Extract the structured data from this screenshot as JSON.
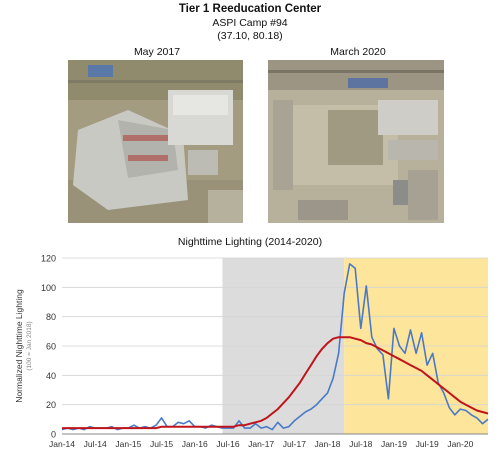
{
  "header": {
    "title": "Tier 1 Reeducation Center",
    "camp": "ASPI Camp #94",
    "coords": "(37.10, 80.18)"
  },
  "images": [
    {
      "label": "May 2017"
    },
    {
      "label": "March 2020"
    }
  ],
  "chart_data": {
    "type": "line",
    "title": "Nighttime Lighting (2014-2020)",
    "ylabel": "Normalized Nighttime Lighting",
    "ylabel_note": "(100 = Jan 2018)",
    "ylim": [
      0,
      120
    ],
    "yticks": [
      0,
      20,
      40,
      60,
      80,
      100,
      120
    ],
    "xticks": [
      "Jan-14",
      "Jul-14",
      "Jan-15",
      "Jul-15",
      "Jan-16",
      "Jul-16",
      "Jan-17",
      "Jul-17",
      "Jan-18",
      "Jul-18",
      "Jan-19",
      "Jul-19",
      "Jan-20"
    ],
    "grid": true,
    "shaded_regions": [
      {
        "from": 29,
        "to": 51,
        "color": "#dcdcdc"
      },
      {
        "from": 51,
        "to": 78,
        "color": "#fde59c"
      }
    ],
    "series": [
      {
        "color": "#4a7ac6",
        "x": [
          0,
          1,
          2,
          3,
          4,
          5,
          6,
          7,
          8,
          9,
          10,
          11,
          12,
          13,
          14,
          15,
          16,
          17,
          18,
          19,
          20,
          21,
          22,
          23,
          24,
          25,
          26,
          27,
          28,
          29,
          30,
          31,
          32,
          33,
          34,
          35,
          36,
          37,
          38,
          39,
          40,
          41,
          42,
          43,
          44,
          45,
          46,
          47,
          48,
          49,
          50,
          51,
          52,
          53,
          54,
          55,
          56,
          57,
          58,
          59,
          60,
          61,
          62,
          63,
          64,
          65,
          66,
          67,
          68,
          69,
          70,
          71,
          72,
          73,
          74,
          75,
          76,
          77
        ],
        "values": [
          3,
          4,
          3,
          4,
          3,
          5,
          4,
          4,
          4,
          5,
          3,
          4,
          4,
          6,
          4,
          5,
          4,
          6,
          11,
          5,
          5,
          8,
          7,
          9,
          5,
          5,
          4,
          6,
          5,
          4,
          4,
          4,
          9,
          4,
          4,
          7,
          4,
          5,
          3,
          8,
          4,
          5,
          9,
          12,
          15,
          17,
          20,
          24,
          28,
          38,
          55,
          96,
          116,
          113,
          72,
          101,
          66,
          58,
          54,
          24,
          72,
          60,
          55,
          71,
          55,
          69,
          47,
          55,
          35,
          28,
          18,
          13,
          17,
          16,
          13,
          11,
          7,
          10
        ]
      },
      {
        "color": "#c0141b",
        "x": [
          0,
          1,
          2,
          3,
          4,
          5,
          6,
          7,
          8,
          9,
          10,
          11,
          12,
          13,
          14,
          15,
          16,
          17,
          18,
          19,
          20,
          21,
          22,
          23,
          24,
          25,
          26,
          27,
          28,
          29,
          30,
          31,
          32,
          33,
          34,
          35,
          36,
          37,
          38,
          39,
          40,
          41,
          42,
          43,
          44,
          45,
          46,
          47,
          48,
          49,
          50,
          51,
          52,
          53,
          54,
          55,
          56,
          57,
          58,
          59,
          60,
          61,
          62,
          63,
          64,
          65,
          66,
          67,
          68,
          69,
          70,
          71,
          72,
          73,
          74,
          75,
          76,
          77
        ],
        "values": [
          4,
          4,
          4,
          4,
          4,
          4,
          4,
          4,
          4,
          4,
          4,
          4,
          4,
          4,
          4,
          4,
          4,
          4,
          5,
          5,
          5,
          5,
          5,
          5,
          5,
          5,
          5,
          5,
          5,
          5,
          5,
          5,
          6,
          6,
          7,
          8,
          9,
          11,
          14,
          17,
          21,
          25,
          30,
          35,
          41,
          47,
          53,
          58,
          62,
          65,
          66,
          66,
          66,
          65,
          64,
          62,
          61,
          59,
          57,
          55,
          53,
          51,
          49,
          47,
          45,
          43,
          40,
          37,
          34,
          31,
          28,
          25,
          22,
          20,
          18,
          16,
          15,
          14
        ]
      }
    ]
  }
}
